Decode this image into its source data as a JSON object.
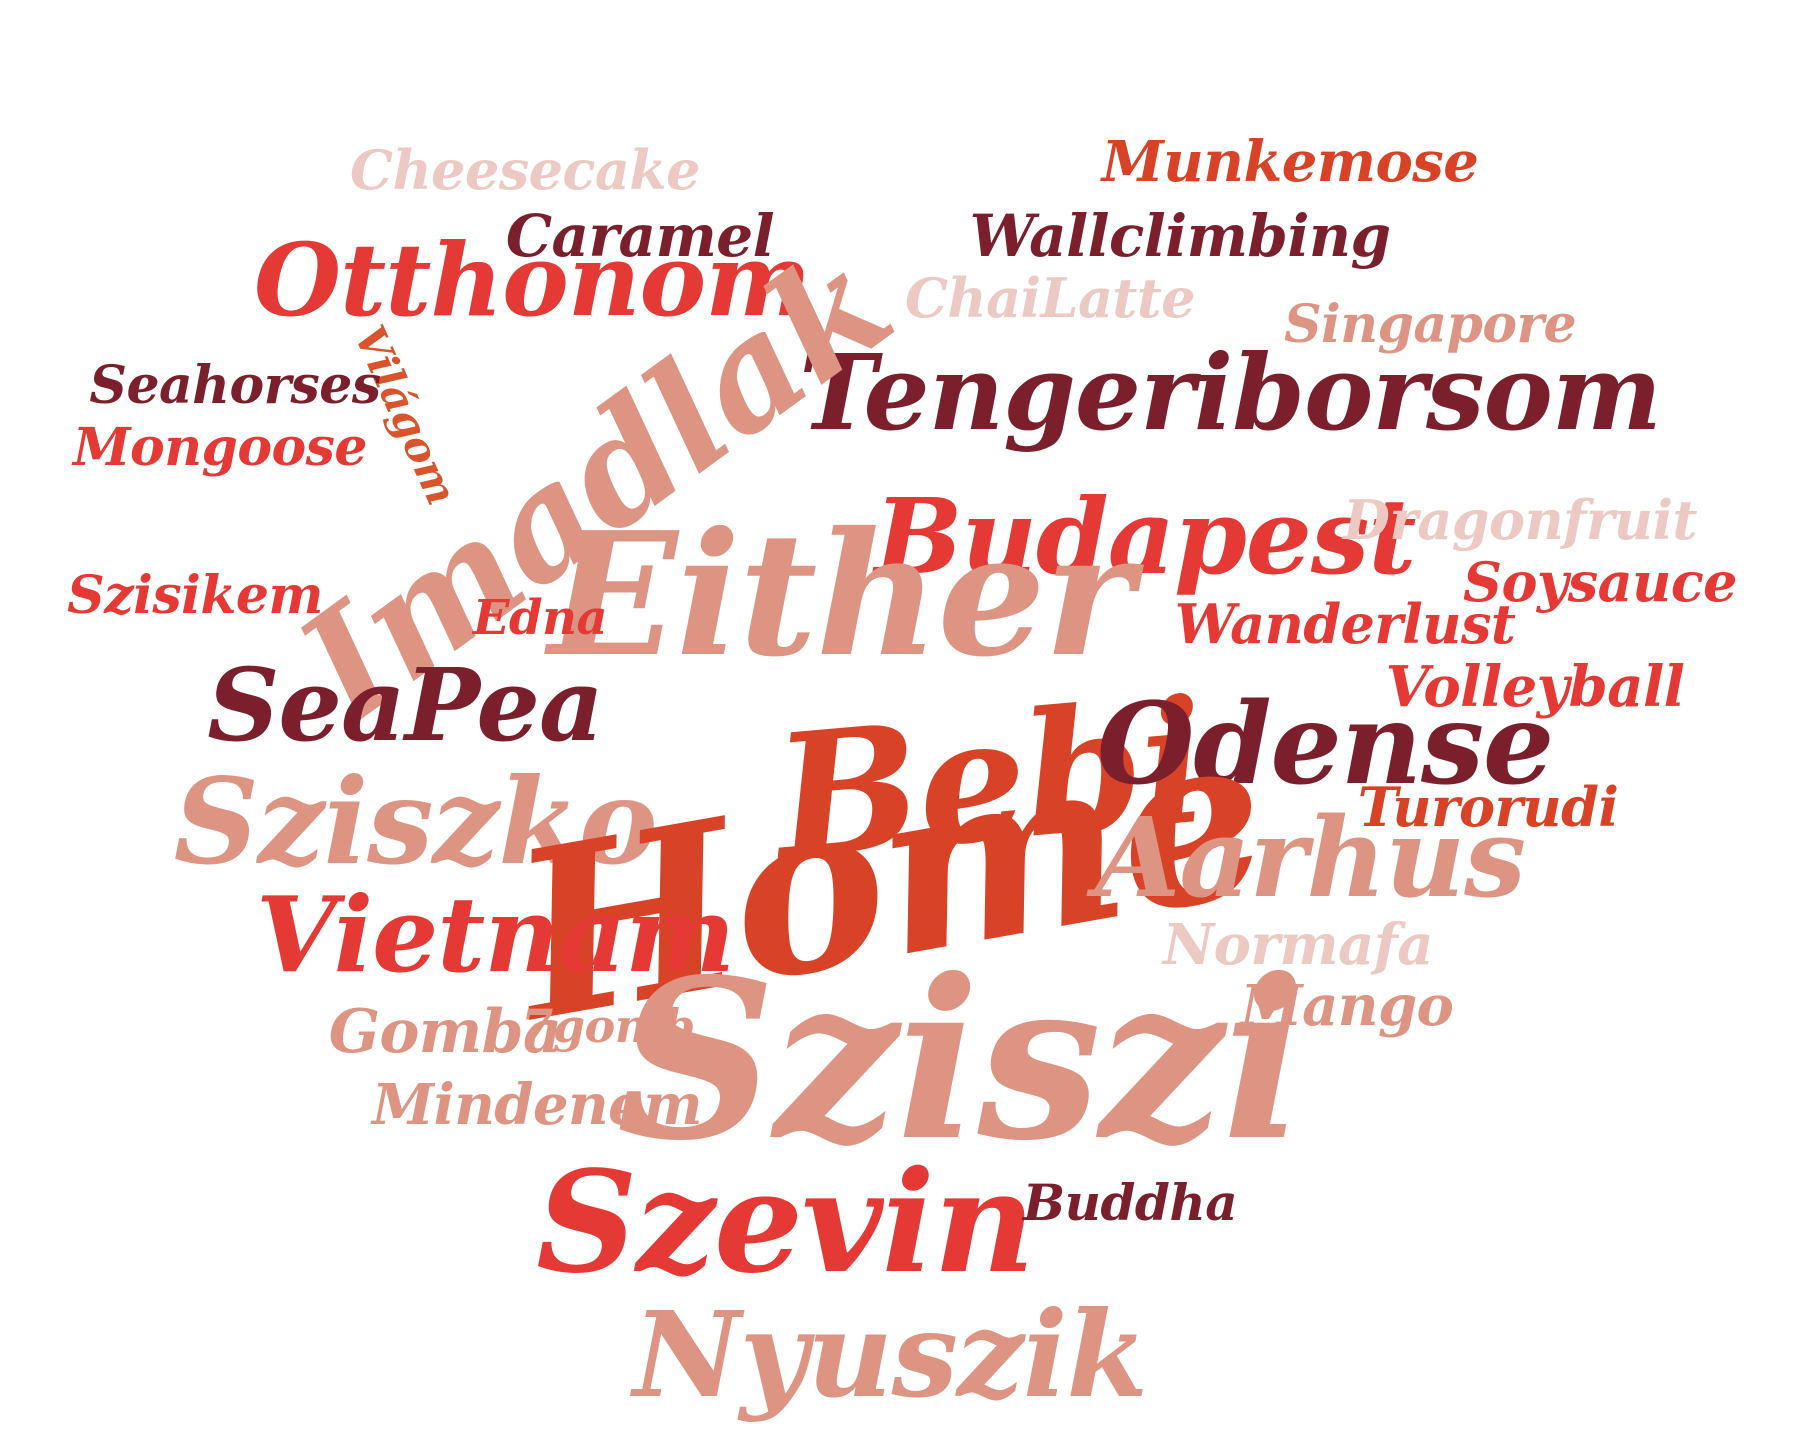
{
  "words": [
    {
      "key": "cheesecake",
      "text": "Cheesecake",
      "color": "#ecc9c2"
    },
    {
      "key": "munkemose",
      "text": "Munkemose",
      "color": "#d84327"
    },
    {
      "key": "caramel",
      "text": "Caramel",
      "color": "#7a1f2b"
    },
    {
      "key": "wallclimbing",
      "text": "Wallclimbing",
      "color": "#7a1f2b"
    },
    {
      "key": "otthonom",
      "text": "Otthonom",
      "color": "#e53935"
    },
    {
      "key": "chailatte",
      "text": "ChaiLatte",
      "color": "#ecc9c2"
    },
    {
      "key": "singapore",
      "text": "Singapore",
      "color": "#de9482"
    },
    {
      "key": "vilagom",
      "text": "Világom",
      "color": "#d9542a"
    },
    {
      "key": "seahorses",
      "text": "Seahorses",
      "color": "#7a1f2b"
    },
    {
      "key": "tengeriborsom",
      "text": "Tengeriborsom",
      "color": "#7a1f2b"
    },
    {
      "key": "mongoose",
      "text": "Mongoose",
      "color": "#e53935"
    },
    {
      "key": "imadlak",
      "text": "Imadlak",
      "color": "#de9482"
    },
    {
      "key": "budapest",
      "text": "Budapest",
      "color": "#e53935"
    },
    {
      "key": "dragonfruit",
      "text": "Dragonfruit",
      "color": "#ecc9c2"
    },
    {
      "key": "szisizikem",
      "text": "Szisikem",
      "color": "#e53935"
    },
    {
      "key": "either",
      "text": "Either",
      "color": "#de9482"
    },
    {
      "key": "soysauce",
      "text": "Soysauce",
      "color": "#e53935"
    },
    {
      "key": "edna",
      "text": "Edna",
      "color": "#e53935"
    },
    {
      "key": "wanderlust",
      "text": "Wanderlust",
      "color": "#e53935"
    },
    {
      "key": "seapea",
      "text": "SeaPea",
      "color": "#7a1f2b"
    },
    {
      "key": "volleyball",
      "text": "Volleyball",
      "color": "#e53935"
    },
    {
      "key": "bebi",
      "text": "Bebi",
      "color": "#d84327"
    },
    {
      "key": "odense",
      "text": "Odense",
      "color": "#7a1f2b"
    },
    {
      "key": "sziszko",
      "text": "Sziszko",
      "color": "#de9482"
    },
    {
      "key": "turorudi",
      "text": "Turorudi",
      "color": "#d84327"
    },
    {
      "key": "home",
      "text": "Home",
      "color": "#d84327"
    },
    {
      "key": "aarhus",
      "text": "Aarhus",
      "color": "#de9482"
    },
    {
      "key": "vietnam",
      "text": "Vietnam",
      "color": "#e53935"
    },
    {
      "key": "normafa",
      "text": "Normafa",
      "color": "#ecc9c2"
    },
    {
      "key": "mango",
      "text": "Mango",
      "color": "#de9482"
    },
    {
      "key": "gomba",
      "text": "Gomba",
      "color": "#de9482"
    },
    {
      "key": "gomb",
      "text": "7gomb",
      "color": "#de9482"
    },
    {
      "key": "sziszi",
      "text": "Sziszi",
      "color": "#de9482"
    },
    {
      "key": "mindenem",
      "text": "Mindenem",
      "color": "#de9482"
    },
    {
      "key": "szevin",
      "text": "Szevin",
      "color": "#e53935"
    },
    {
      "key": "buddha",
      "text": "Buddha",
      "color": "#7a1f2b"
    },
    {
      "key": "nyuszik",
      "text": "Nyuszik",
      "color": "#de9482"
    }
  ]
}
